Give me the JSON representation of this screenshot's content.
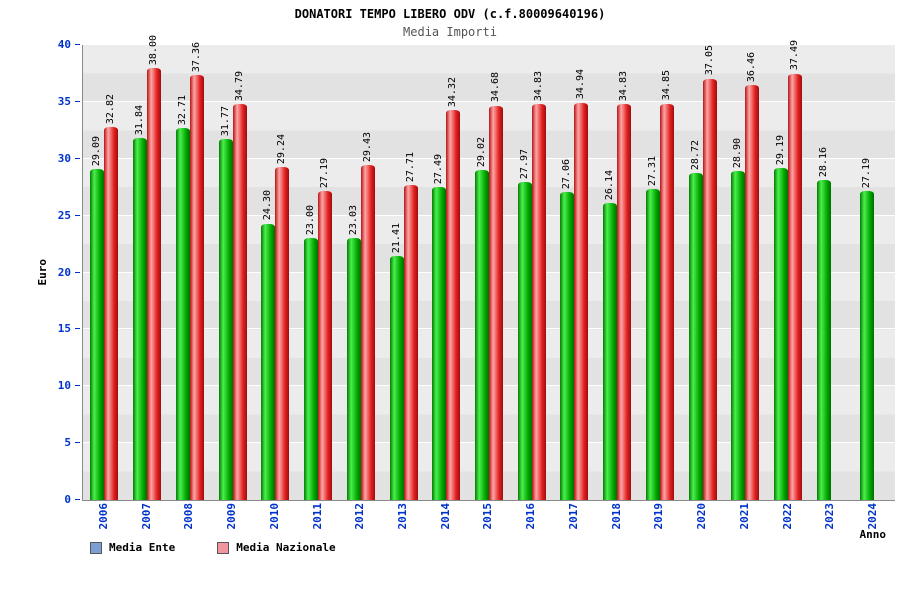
{
  "header": {
    "title": "DONATORI TEMPO LIBERO ODV (c.f.80009640196)",
    "subtitle": "Media Importi"
  },
  "axes": {
    "y_label": "Euro",
    "x_label": "Anno",
    "y_ticks": [
      0,
      5,
      10,
      15,
      20,
      25,
      30,
      35,
      40
    ],
    "y_max": 40
  },
  "legend": {
    "items": [
      {
        "label": "Media Ente",
        "swatch": "#7f9fd4"
      },
      {
        "label": "Media Nazionale",
        "swatch": "#f2959f"
      }
    ]
  },
  "colors": {
    "bar_ente": "#00a800",
    "bar_nazionale": "#e02020",
    "axis_text": "#0033cc",
    "subtitle_text": "#555555",
    "plot_band_dark": "#e2e2e2",
    "plot_band_light": "#ececec"
  },
  "chart_data": {
    "type": "bar",
    "title": "DONATORI TEMPO LIBERO ODV (c.f.80009640196)",
    "subtitle": "Media Importi",
    "xlabel": "Anno",
    "ylabel": "Euro",
    "ylim": [
      0,
      40
    ],
    "legend_position": "bottom-left",
    "grid": true,
    "categories": [
      "2006",
      "2007",
      "2008",
      "2009",
      "2010",
      "2011",
      "2012",
      "2013",
      "2014",
      "2015",
      "2016",
      "2017",
      "2018",
      "2019",
      "2020",
      "2021",
      "2022",
      "2023",
      "2024"
    ],
    "series": [
      {
        "name": "Media Ente",
        "values": [
          29.09,
          31.84,
          32.71,
          31.77,
          24.3,
          23.0,
          23.03,
          21.41,
          27.49,
          29.02,
          27.97,
          27.06,
          26.14,
          27.31,
          28.72,
          28.9,
          29.19,
          28.16,
          27.19
        ],
        "labels": [
          "29.09",
          "31.84",
          "32.71",
          "31.77",
          "24.30",
          "23.00",
          "23.03",
          "21.41",
          "27.49",
          "29.02",
          "27.97",
          "27.06",
          "26.14",
          "27.31",
          "28.72",
          "28.90",
          "29.19",
          "28.16",
          "27.19"
        ]
      },
      {
        "name": "Media Nazionale",
        "values": [
          32.82,
          38.0,
          37.36,
          34.79,
          29.24,
          27.19,
          29.43,
          27.71,
          34.32,
          34.68,
          34.83,
          34.94,
          34.83,
          34.85,
          37.05,
          36.46,
          37.49,
          null,
          null
        ],
        "labels": [
          "32.82",
          "38.00",
          "37.36",
          "34.79",
          "29.24",
          "27.19",
          "29.43",
          "27.71",
          "34.32",
          "34.68",
          "34.83",
          "34.94",
          "34.83",
          "34.85",
          "37.05",
          "36.46",
          "37.49",
          null,
          null
        ]
      }
    ]
  }
}
